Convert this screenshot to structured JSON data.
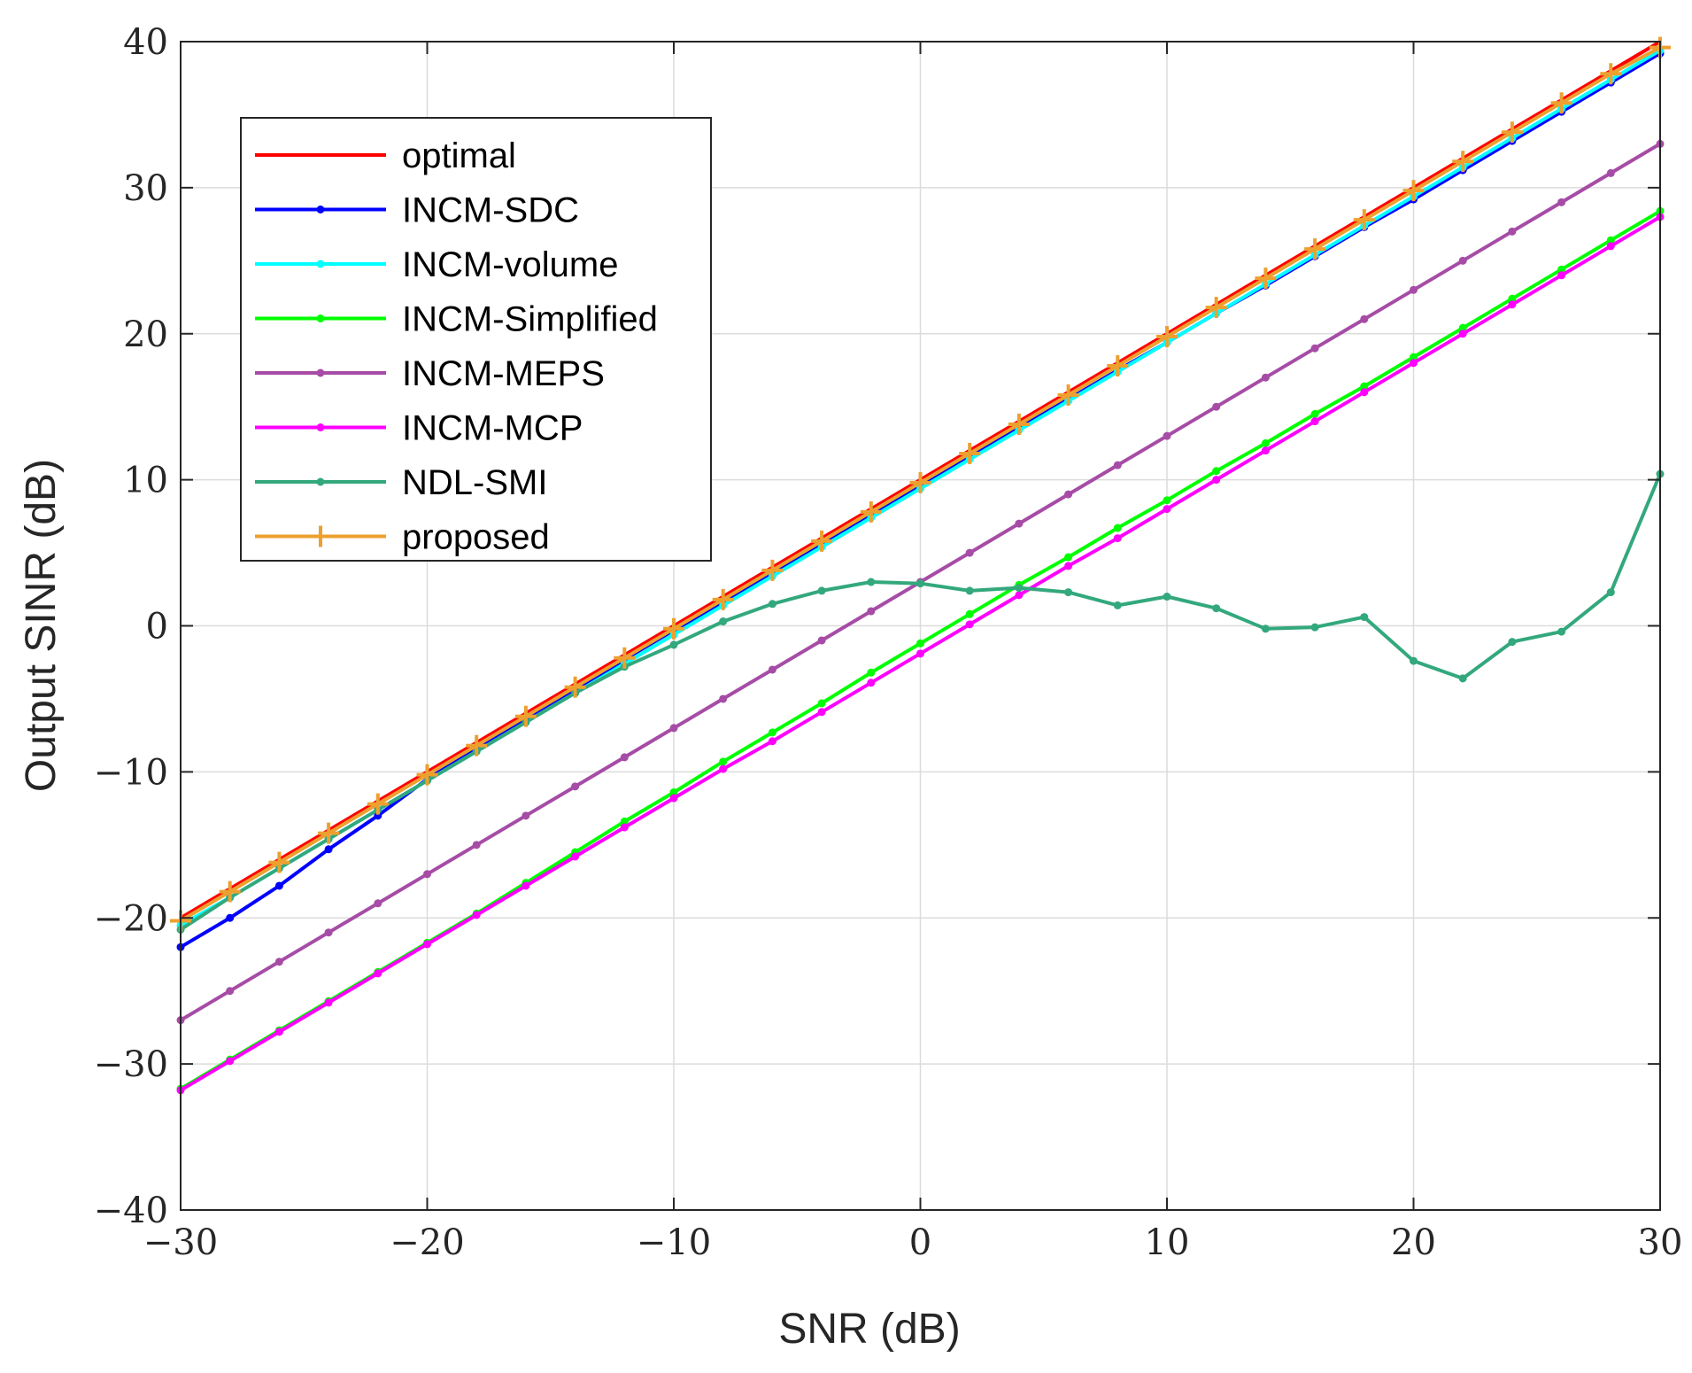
{
  "chart_data": {
    "type": "line",
    "title": "",
    "xlabel": "SNR (dB)",
    "ylabel": "Output SINR (dB)",
    "xlim": [
      -30,
      30
    ],
    "ylim": [
      -40,
      40
    ],
    "xticks": [
      -30,
      -20,
      -10,
      0,
      10,
      20,
      30
    ],
    "yticks": [
      -40,
      -30,
      -20,
      -10,
      0,
      10,
      20,
      30,
      40
    ],
    "xtick_labels": [
      "−30",
      "−20",
      "−10",
      "0",
      "10",
      "20",
      "30"
    ],
    "ytick_labels": [
      "−40",
      "−30",
      "−20",
      "−10",
      "0",
      "10",
      "20",
      "30",
      "40"
    ],
    "grid": true,
    "legend_position": "top-left",
    "x": [
      -30,
      -28,
      -26,
      -24,
      -22,
      -20,
      -18,
      -16,
      -14,
      -12,
      -10,
      -8,
      -6,
      -4,
      -2,
      0,
      2,
      4,
      6,
      8,
      10,
      12,
      14,
      16,
      18,
      20,
      22,
      24,
      26,
      28,
      30
    ],
    "series": [
      {
        "name": "optimal",
        "color": "#ff0000",
        "marker": "none",
        "values": [
          -20,
          -18,
          -16,
          -14,
          -12,
          -10,
          -8,
          -6,
          -4,
          -2,
          0,
          2,
          4,
          6,
          8,
          10,
          12,
          14,
          16,
          18,
          20,
          22,
          24,
          26,
          28,
          30,
          32,
          34,
          36,
          38,
          40
        ]
      },
      {
        "name": "INCM-SDC",
        "color": "#0000ff",
        "marker": "dot",
        "values": [
          -22,
          -20,
          -17.8,
          -15.3,
          -13,
          -10.5,
          -8.4,
          -6.4,
          -4.4,
          -2.3,
          -0.3,
          1.6,
          3.6,
          5.6,
          7.6,
          9.6,
          11.6,
          13.6,
          15.5,
          17.5,
          19.4,
          21.4,
          23.3,
          25.3,
          27.3,
          29.2,
          31.2,
          33.2,
          35.2,
          37.2,
          39.2
        ]
      },
      {
        "name": "INCM-volume",
        "color": "#00ffff",
        "marker": "dot",
        "values": [
          -20.5,
          -18.6,
          -16.6,
          -14.6,
          -12.6,
          -10.6,
          -8.6,
          -6.6,
          -4.6,
          -2.6,
          -0.6,
          1.4,
          3.4,
          5.4,
          7.4,
          9.4,
          11.4,
          13.4,
          15.4,
          17.4,
          19.4,
          21.4,
          23.4,
          25.4,
          27.4,
          29.4,
          31.4,
          33.4,
          35.4,
          37.4,
          39.4
        ]
      },
      {
        "name": "INCM-Simplified",
        "color": "#00ff00",
        "marker": "dot",
        "values": [
          -31.7,
          -29.7,
          -27.7,
          -25.7,
          -23.7,
          -21.7,
          -19.7,
          -17.6,
          -15.5,
          -13.4,
          -11.4,
          -9.3,
          -7.3,
          -5.3,
          -3.2,
          -1.2,
          0.8,
          2.8,
          4.7,
          6.7,
          8.6,
          10.6,
          12.5,
          14.5,
          16.4,
          18.4,
          20.4,
          22.4,
          24.4,
          26.4,
          28.4
        ]
      },
      {
        "name": "INCM-MEPS",
        "color": "#a64ca6",
        "marker": "dot",
        "values": [
          -27,
          -25,
          -23,
          -21,
          -19,
          -17,
          -15,
          -13,
          -11,
          -9,
          -7,
          -5,
          -3,
          -1,
          1,
          3,
          5,
          7,
          9,
          11,
          13,
          15,
          17,
          19,
          21,
          23,
          25,
          27,
          29,
          31,
          33
        ]
      },
      {
        "name": "INCM-MCP",
        "color": "#ff00ff",
        "marker": "dot",
        "values": [
          -31.8,
          -29.8,
          -27.8,
          -25.8,
          -23.8,
          -21.8,
          -19.8,
          -17.8,
          -15.8,
          -13.8,
          -11.8,
          -9.8,
          -7.9,
          -5.9,
          -3.9,
          -1.9,
          0.1,
          2.1,
          4.1,
          6,
          8,
          10,
          12,
          14,
          16,
          18,
          20,
          22,
          24,
          26,
          28
        ]
      },
      {
        "name": "NDL-SMI",
        "color": "#33a87d",
        "marker": "dot",
        "values": [
          -20.8,
          -18.6,
          -16.6,
          -14.6,
          -12.6,
          -10.6,
          -8.6,
          -6.6,
          -4.6,
          -2.8,
          -1.3,
          0.3,
          1.5,
          2.4,
          3,
          2.9,
          2.4,
          2.6,
          2.3,
          1.4,
          2,
          1.2,
          -0.2,
          -0.1,
          0.6,
          -2.4,
          -3.6,
          -1.1,
          -0.4,
          2.3,
          10.4
        ]
      },
      {
        "name": "proposed",
        "color": "#eda02f",
        "marker": "plus",
        "values": [
          -20.2,
          -18.2,
          -16.2,
          -14.2,
          -12.2,
          -10.2,
          -8.2,
          -6.2,
          -4.2,
          -2.2,
          -0.2,
          1.8,
          3.8,
          5.8,
          7.8,
          9.8,
          11.8,
          13.8,
          15.8,
          17.8,
          19.8,
          21.8,
          23.8,
          25.8,
          27.8,
          29.8,
          31.8,
          33.8,
          35.8,
          37.8,
          39.6
        ]
      }
    ]
  }
}
